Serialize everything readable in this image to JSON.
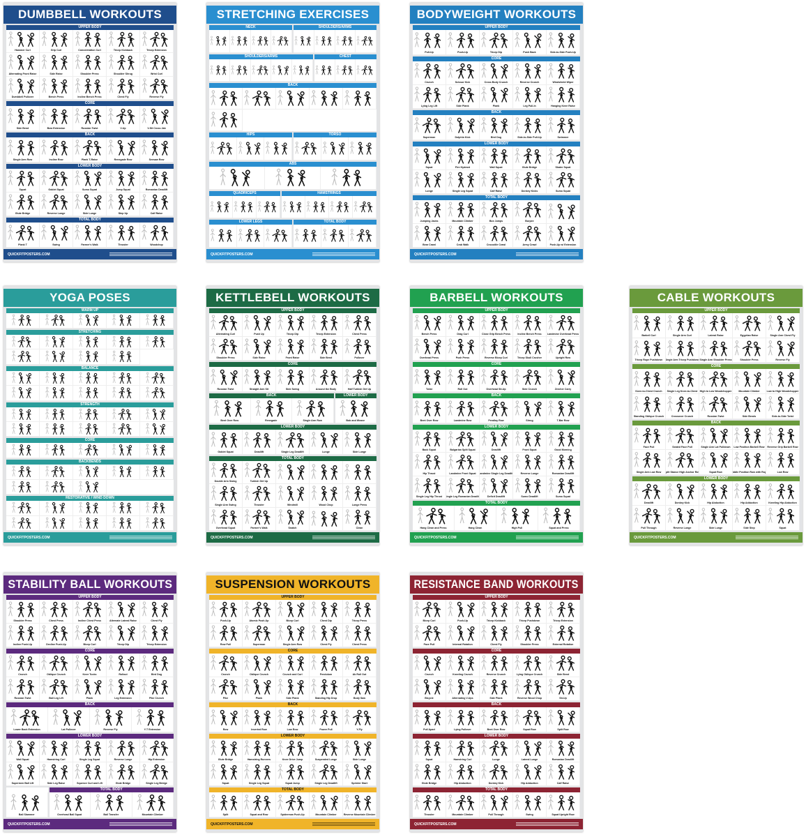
{
  "footer_brand": "QUICKFITPOSTERS.COM",
  "posters": [
    {
      "title": "DUMBBELL WORKOUTS",
      "color": "#1f4e8c",
      "title_color": "#ffffff",
      "rows": [
        [
          {
            "label": "UPPER BODY",
            "items": [
              "Hammer Curl",
              "Grip Curl",
              "Concentration Curl",
              "Tricep Kickback",
              "Tricep Extension",
              "Alternating Front Raise",
              "Side Raise",
              "Shoulder Press",
              "Shoulder Shrug",
              "Wrist Curl",
              "Dumbbell Pullover",
              "Bench Press",
              "Incline Bench Press",
              "Chest Fly",
              "Reverse Fly"
            ]
          }
        ],
        [
          {
            "label": "CORE",
            "items": [
              "Side Bend",
              "Bow Extension",
              "Russian Twist",
              "V-Up",
              "V-Sit Cross Jab"
            ]
          }
        ],
        [
          {
            "label": "BACK",
            "items": [
              "Single Arm Row",
              "Incline Row",
              "Plank T-Raise",
              "Renegade Row",
              "Seesaw Row"
            ]
          }
        ],
        [
          {
            "label": "LOWER BODY",
            "items": [
              "Squat",
              "Goblet Squat",
              "Sumo Squat",
              "Jump Squat",
              "Romanian Deadlift",
              "Glute Bridge",
              "Reverse Lunge",
              "Side Lunge",
              "Step Up",
              "Calf Raise"
            ]
          }
        ],
        [
          {
            "label": "TOTAL BODY",
            "items": [
              "Plank T",
              "Swing",
              "Farmer's Walk",
              "Thruster",
              "Woodchop"
            ]
          }
        ]
      ]
    },
    {
      "title": "STRETCHING EXERCISES",
      "color": "#2a8fd0",
      "title_color": "#ffffff",
      "rows": [
        [
          {
            "label": "NECK",
            "items": [
              "",
              "",
              "",
              ""
            ]
          },
          {
            "label": "SHOULDERS/ARMS",
            "items": [
              "",
              "",
              "",
              ""
            ]
          }
        ],
        [
          {
            "label": "SHOULDERS/ARMS",
            "items": [
              "",
              "",
              "",
              "",
              ""
            ]
          },
          {
            "label": "CHEST",
            "items": [
              "",
              "",
              ""
            ]
          }
        ],
        [
          {
            "label": "BACK",
            "items": [
              "",
              "",
              "",
              "",
              "",
              ""
            ]
          }
        ],
        [
          {
            "label": "HIPS",
            "items": [
              "",
              "",
              ""
            ]
          },
          {
            "label": "TORSO",
            "items": [
              "",
              "",
              ""
            ]
          }
        ],
        [
          {
            "label": "ABS",
            "items": [
              "",
              "",
              ""
            ]
          }
        ],
        [
          {
            "label": "QUADRICEPS",
            "items": [
              "",
              "",
              ""
            ]
          },
          {
            "label": "HAMSTRINGS",
            "items": [
              "",
              "",
              "",
              ""
            ]
          }
        ],
        [
          {
            "label": "LOWER LEGS",
            "items": [
              "",
              "",
              ""
            ]
          },
          {
            "label": "TOTAL BODY",
            "items": [
              "",
              "",
              ""
            ]
          }
        ]
      ]
    },
    {
      "title": "BODYWEIGHT WORKOUTS",
      "color": "#2380c0",
      "title_color": "#ffffff",
      "rows": [
        [
          {
            "label": "UPPER BODY",
            "items": [
              "Pull-Up",
              "Push-Up",
              "Tricep Dip",
              "Push Back",
              "Side-to-Side Push-Up"
            ]
          }
        ],
        [
          {
            "label": "CORE",
            "items": [
              "Crunch",
              "Scissor Kick",
              "Cross Body Crunch",
              "Reverse Crunch",
              "Windshield Wiper",
              "Lying Leg Lift",
              "Side Plank",
              "Plank",
              "Leg Pull-In",
              "Hanging Knee Raise"
            ]
          }
        ],
        [
          {
            "label": "BACK",
            "items": [
              "Superman",
              "Dolphin Kick",
              "Bird Dog",
              "Side-to-Side Pull-Up",
              "Swimmer"
            ]
          }
        ],
        [
          {
            "label": "LOWER BODY",
            "items": [
              "Squat",
              "Fire Hydrant",
              "Wall Squat",
              "Glute Bridge",
              "Skater Squat",
              "Lunge",
              "Single Leg Squat",
              "Calf Raise",
              "Donkey Kicks",
              "Sumo Squat"
            ]
          }
        ],
        [
          {
            "label": "TOTAL BODY",
            "items": [
              "Jumping Jacks",
              "Mountain Climber",
              "Box Jumps",
              "Burpee",
              "",
              "Bear Crawl",
              "Crab Walk",
              "Crocodile Crawl",
              "Army Crawl",
              "Push-Up w/ Extension"
            ]
          }
        ]
      ]
    },
    {
      "title": "YOGA POSES",
      "color": "#2a9d9b",
      "title_color": "#ffffff",
      "rows": [
        [
          {
            "label": "WARM UP",
            "items": [
              "",
              "",
              "",
              "",
              ""
            ]
          }
        ],
        [
          {
            "label": "STRETCHING",
            "items": [
              "",
              "",
              "",
              "",
              "",
              "",
              "",
              "",
              ""
            ]
          }
        ],
        [
          {
            "label": "BALANCE",
            "items": [
              "",
              "",
              "",
              "",
              "",
              "",
              "",
              "",
              "",
              ""
            ]
          }
        ],
        [
          {
            "label": "STRENGTH",
            "items": [
              "",
              "",
              "",
              "",
              "",
              "",
              "",
              "",
              "",
              ""
            ]
          }
        ],
        [
          {
            "label": "CORE",
            "items": [
              "",
              "",
              "",
              "",
              ""
            ]
          }
        ],
        [
          {
            "label": "BACKBENDS",
            "items": [
              "",
              "",
              "",
              "",
              "",
              "",
              "",
              ""
            ]
          }
        ],
        [
          {
            "label": "RESTORATIVE / WIND DOWN",
            "items": [
              "",
              "",
              "",
              "",
              "",
              "",
              "",
              "",
              "",
              ""
            ]
          }
        ]
      ]
    },
    {
      "title": "KETTLEBELL WORKOUTS",
      "color": "#1d6b45",
      "title_color": "#ffffff",
      "rows": [
        [
          {
            "label": "UPPER BODY",
            "items": [
              "Alternating Curl",
              "Push Up",
              "Tricep Dip",
              "Tricep Extension",
              "Chest Press",
              "Shoulder Press",
              "Side Raise",
              "Front Raise",
              "Side Bend",
              "Pullover"
            ]
          }
        ],
        [
          {
            "label": "CORE",
            "items": [
              "Russian Twist",
              "Straight Arm Sit",
              "Side Swing",
              "Around the Body",
              "Half Turkish Get Up"
            ]
          }
        ],
        [
          {
            "label": "BACK",
            "items": [
              "Bent Over Row",
              "Renegade",
              "Single Arm Row"
            ]
          },
          {
            "label": "LOWER BODY",
            "items": [
              "Bob and Weave"
            ]
          }
        ],
        [
          {
            "label": "LOWER BODY",
            "items": [
              "Goblet Squat",
              "Deadlift",
              "Single Leg Deadlift",
              "Lunge",
              "Side Lunge"
            ]
          }
        ],
        [
          {
            "label": "TOTAL BODY",
            "items": [
              "Double Arm Swing",
              "Turkish Get Up",
              "",
              "",
              "",
              "Single Arm Swing",
              "Thruster",
              "Windmill",
              "Wood Chop",
              "Lunge Press",
              "Overhead Squat",
              "Farmer's Walk",
              "Snatch",
              "",
              "Clean"
            ]
          }
        ]
      ]
    },
    {
      "title": "BARBELL WORKOUTS",
      "color": "#21a150",
      "title_color": "#ffffff",
      "rows": [
        [
          {
            "label": "UPPER BODY",
            "items": [
              "Bench Press",
              "Drag Curl",
              "Close Grip Bench Press",
              "Incline Bench Press",
              "Landmine Overhead Press",
              "Overhead Press",
              "Push Press",
              "Reverse Bicep Curl",
              "Tricep Skull Crusher",
              "Upright Row"
            ]
          }
        ],
        [
          {
            "label": "CORE",
            "items": [
              "Twist",
              "Roll Out",
              "Overhead Sit-Up",
              "Side Crunch",
              "Zercher Carry"
            ]
          }
        ],
        [
          {
            "label": "BACK",
            "items": [
              "Bent Over Row",
              "Landmine Row",
              "Pendlay Row",
              "Shrug",
              "T-Bar Row"
            ]
          }
        ],
        [
          {
            "label": "LOWER BODY",
            "items": [
              "Back Squat",
              "Bulgarian Split Squat",
              "Deadlift",
              "Front Squat",
              "Good Morning",
              "Hip Thrust",
              "Landmine Front Squat",
              "Landmine Single Leg Deadlift",
              "Reverse Lunge",
              "Romanian Deadlift",
              "Single Leg Hip Thrust",
              "Single Leg Romanian Deadlift",
              "Deficit Deadlift",
              "Sumo Deadlift",
              "Sumo Squat"
            ]
          }
        ],
        [
          {
            "label": "TOTAL BODY",
            "items": [
              "Hang Clean and Press",
              "Hang Clean",
              "High Pull",
              "Squat and Press"
            ]
          }
        ]
      ]
    },
    {
      "title": "CABLE WORKOUTS",
      "color": "#6a9a3c",
      "title_color": "#ffffff",
      "rows": [
        [
          {
            "label": "UPPER BODY",
            "items": [
              "Barbell Curl",
              "Single Arm Curl",
              "Lateral Raise",
              "Egyptian Raise",
              "Single Arm Chest Fly",
              "Tricep Rope Pushdown",
              "Single Arm Tricep Pushdown",
              "Single Arm Shoulder Press",
              "Shoulder Press",
              "Reverse Fly"
            ]
          }
        ],
        [
          {
            "label": "CORE",
            "items": [
              "Knee-to-Chest Crunch",
              "Single Leg Knee-to-Chest",
              "High to Low Woodchopper",
              "Mountain Climber",
              "Low to High Woodchopper",
              "Standing Oblique Crunch",
              "Crossover Crunch",
              "Russian Twist",
              "Side Bends",
              "Side-to-Side Twist"
            ]
          }
        ],
        [
          {
            "label": "BACK",
            "items": [
              "Face Pull",
              "Seated Face Pull",
              "Single Arm Lat Pulldown",
              "Low Position Barbell Row",
              "Reverse Grip Barbell Row",
              "Single Arm Low Row",
              "Split Stance High Anchor Row",
              "Squat Row",
              "Middle Position Row with Rope",
              "Low Row"
            ]
          }
        ],
        [
          {
            "label": "LOWER BODY",
            "items": [
              "Deadlift",
              "Donkey Kick",
              "Hip Abduction",
              "Hip Adduction",
              "Kneeling Hip Abduction",
              "Pull Through",
              "Reverse Lunge",
              "Side Lunge",
              "Side Step",
              "Squat"
            ]
          }
        ]
      ]
    },
    {
      "title": "STABILITY BALL WORKOUTS",
      "color": "#5c2a7e",
      "title_color": "#ffffff",
      "rows": [
        [
          {
            "label": "UPPER BODY",
            "items": [
              "Shoulder Press",
              "Chest Press",
              "Incline Chest Press",
              "Alternate Lateral Raise",
              "Chest Fly",
              "Incline Push-Up",
              "Decline Push-Up",
              "Bicep Curl",
              "Tricep Dip",
              "Tricep Extension"
            ]
          }
        ],
        [
          {
            "label": "CORE",
            "items": [
              "Crunch",
              "Oblique Crunch",
              "Knee Tucks",
              "Rollout",
              "Bird Dog",
              "Russian Twist",
              "Ball Leg Lift",
              "Plank",
              "Leg Extension",
              "Pike Crunch"
            ]
          }
        ],
        [
          {
            "label": "BACK",
            "items": [
              "Lower Back Extension",
              "Lat Pullover",
              "Reverse Fly",
              "Y-T Extension"
            ]
          }
        ],
        [
          {
            "label": "LOWER BODY",
            "items": [
              "Wall Squat",
              "Hamstring Curl",
              "Single Leg Squat",
              "Reverse Lunge",
              "Hip Extension",
              "Supermen Ball Lift",
              "Side Leg Raise",
              "Squeeze Curl and Lift",
              "Glute Bridge",
              "Single Leg Bridge"
            ]
          }
        ],
        [
          {
            "label": "",
            "items": [
              "Ball Slammer"
            ]
          },
          {
            "label": "TOTAL BODY",
            "items": [
              "Overhead Ball Squat",
              "Ball Transfer",
              "Mountain Climber"
            ]
          }
        ]
      ]
    },
    {
      "title": "SUSPENSION WORKOUTS",
      "color": "#f0b429",
      "title_color": "#111111",
      "rows": [
        [
          {
            "label": "UPPER BODY",
            "items": [
              "Push-Up",
              "Atomic Push-Up",
              "Bicep Curl",
              "Chest Dip",
              "Tricep Press",
              "Row Pull",
              "Superman",
              "Single Arm Row",
              "Chest Fly",
              "Chest Press"
            ]
          }
        ],
        [
          {
            "label": "CORE",
            "items": [
              "Crunch",
              "Oblique Crunch",
              "Crunch and Curl",
              "Pendulum",
              "Ab Roll Out",
              "Pike",
              "Plank",
              "Side Plank",
              "Standing Hip Drop",
              "Body Saw"
            ]
          }
        ],
        [
          {
            "label": "BACK",
            "items": [
              "Row",
              "Inverted Row",
              "Low Row",
              "Power Pull",
              "Y-Fly"
            ]
          }
        ],
        [
          {
            "label": "LOWER BODY",
            "items": [
              "Glute Bridge",
              "Hamstring Runners",
              "Knee Drive Jump",
              "Suspended Lunge",
              "Side Lunge",
              "Squat",
              "Single Leg Squat",
              "Squat Jump",
              "Single Leg Deadlift",
              "Sprinter Start"
            ]
          }
        ],
        [
          {
            "label": "TOTAL BODY",
            "items": [
              "Split",
              "Squat and Row",
              "Spiderman Push-Up",
              "Mountain Climber",
              "Reverse Mountain Climber"
            ]
          }
        ]
      ]
    },
    {
      "title": "RESISTANCE BAND WORKOUTS",
      "color": "#8d2433",
      "title_color": "#ffffff",
      "rows": [
        [
          {
            "label": "UPPER BODY",
            "items": [
              "Bicep Curl",
              "Push-Up",
              "Tricep Kickback",
              "Tricep Pushdown",
              "Tricep Extension",
              "Face Pull",
              "Internal Rotation",
              "Chest Fly",
              "Shoulder Press",
              "External Rotation"
            ]
          }
        ],
        [
          {
            "label": "CORE",
            "items": [
              "Crunch",
              "Kneeling Crunch",
              "Reverse Crunch",
              "Lying Oblique Crunch",
              "Side Bend",
              "Bicycle",
              "Alternating V-Ups",
              "Side Plank",
              "Reverse Wood Chop",
              "Sit-Up"
            ]
          }
        ],
        [
          {
            "label": "BACK",
            "items": [
              "Pull Apart",
              "Lying Pullover",
              "Bent Over Row",
              "Squat Row",
              "Split Row"
            ]
          }
        ],
        [
          {
            "label": "LOWER BODY",
            "items": [
              "Squat",
              "Hamstring Curl",
              "Lunge",
              "Lateral Lunge",
              "Romanian Deadlift",
              "Glute Bridge",
              "Hip Abduction",
              "Donkey Kick",
              "Hip Adduction",
              "Calf Raise"
            ]
          }
        ],
        [
          {
            "label": "TOTAL BODY",
            "items": [
              "Thruster",
              "Mountain Climber",
              "Pull Through",
              "Swing",
              "Squat Upright Row"
            ]
          }
        ]
      ]
    }
  ]
}
